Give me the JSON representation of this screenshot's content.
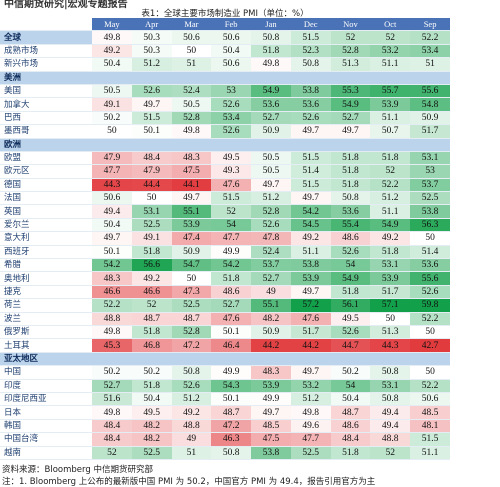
{
  "header": {
    "top": "中信期货研究|宏观专题报告",
    "title": "表1：全球主要市场制造业 PMI（单位：%）"
  },
  "table": {
    "columns": [
      "May",
      "Apr",
      "Mar",
      "Feb",
      "Jan",
      "Dec",
      "Nov",
      "Oct",
      "Sep"
    ],
    "color_scale": {
      "low": "#e23b3e",
      "mid": "#ffffff",
      "high": "#13a04a",
      "min": 44,
      "center": 50,
      "max": 57
    },
    "rows": [
      {
        "label": "全球",
        "group": true,
        "values": [
          49.8,
          50.3,
          50.6,
          50.6,
          50.8,
          51.5,
          52.0,
          52.0,
          52.2
        ]
      },
      {
        "label": "成熟市场",
        "values": [
          49.2,
          50.3,
          50.0,
          50.4,
          51.8,
          52.3,
          52.8,
          53.2,
          53.4
        ]
      },
      {
        "label": "新兴市场",
        "values": [
          50.4,
          51.2,
          51.0,
          50.6,
          49.8,
          50.8,
          51.3,
          51.1,
          51.0
        ]
      },
      {
        "label": "美洲",
        "group": true
      },
      {
        "label": "美国",
        "values": [
          50.5,
          52.6,
          52.4,
          53.0,
          54.9,
          53.8,
          55.3,
          55.7,
          55.6
        ]
      },
      {
        "label": "加拿大",
        "values": [
          49.1,
          49.7,
          50.5,
          52.6,
          53.6,
          53.6,
          54.9,
          53.9,
          54.8
        ]
      },
      {
        "label": "巴西",
        "values": [
          50.2,
          51.5,
          52.8,
          53.4,
          52.7,
          52.6,
          52.7,
          51.1,
          50.9
        ]
      },
      {
        "label": "墨西哥",
        "values": [
          50.0,
          50.1,
          49.8,
          52.6,
          50.9,
          49.7,
          49.7,
          50.7,
          51.7
        ]
      },
      {
        "label": "欧洲",
        "group": true
      },
      {
        "label": "欧盟",
        "values": [
          47.9,
          48.4,
          48.3,
          49.5,
          50.5,
          51.5,
          51.8,
          51.8,
          53.1
        ]
      },
      {
        "label": "欧元区",
        "values": [
          47.7,
          47.9,
          47.5,
          49.3,
          50.5,
          51.4,
          51.8,
          52.0,
          53.0
        ]
      },
      {
        "label": "德国",
        "values": [
          44.3,
          44.4,
          44.1,
          47.6,
          49.7,
          51.5,
          51.8,
          52.2,
          53.7
        ]
      },
      {
        "label": "法国",
        "values": [
          50.6,
          50.0,
          49.7,
          51.5,
          51.2,
          49.7,
          50.8,
          51.2,
          52.5
        ]
      },
      {
        "label": "英国",
        "values": [
          49.4,
          53.1,
          55.1,
          52.0,
          52.8,
          54.2,
          53.6,
          51.1,
          53.8
        ]
      },
      {
        "label": "爱尔兰",
        "values": [
          50.4,
          52.5,
          53.9,
          54.0,
          52.6,
          54.5,
          55.4,
          54.9,
          56.3
        ]
      },
      {
        "label": "意大利",
        "values": [
          49.7,
          49.1,
          47.4,
          47.7,
          47.8,
          49.2,
          48.6,
          49.2,
          50.0
        ]
      },
      {
        "label": "西班牙",
        "values": [
          50.1,
          51.8,
          50.9,
          49.9,
          52.4,
          51.1,
          52.6,
          51.8,
          51.4
        ]
      },
      {
        "label": "希腊",
        "values": [
          54.2,
          56.6,
          54.7,
          54.2,
          53.7,
          53.8,
          54.0,
          53.1,
          53.6
        ]
      },
      {
        "label": "奥地利",
        "values": [
          48.3,
          49.2,
          50.0,
          51.8,
          52.7,
          53.9,
          54.9,
          53.9,
          55.6
        ]
      },
      {
        "label": "捷克",
        "values": [
          46.6,
          46.6,
          47.3,
          48.6,
          49.0,
          49.7,
          51.8,
          51.7,
          52.6
        ]
      },
      {
        "label": "荷兰",
        "values": [
          52.2,
          52.0,
          52.5,
          52.7,
          55.1,
          57.2,
          56.1,
          57.1,
          59.8
        ]
      },
      {
        "label": "波兰",
        "values": [
          48.8,
          48.7,
          48.7,
          47.6,
          48.2,
          47.6,
          49.5,
          50.0,
          52.2
        ]
      },
      {
        "label": "俄罗斯",
        "values": [
          49.8,
          51.8,
          52.8,
          50.1,
          50.9,
          51.7,
          52.6,
          51.3,
          50.0
        ]
      },
      {
        "label": "土耳其",
        "values": [
          45.3,
          46.8,
          47.2,
          46.4,
          44.2,
          44.2,
          44.7,
          44.3,
          42.7
        ]
      },
      {
        "label": "亚太地区",
        "group": true
      },
      {
        "label": "中国",
        "values": [
          50.2,
          50.2,
          50.8,
          49.9,
          48.3,
          49.7,
          50.2,
          50.8,
          50.0
        ]
      },
      {
        "label": "印度",
        "values": [
          52.7,
          51.8,
          52.6,
          54.3,
          53.9,
          53.2,
          54.0,
          53.1,
          52.2
        ]
      },
      {
        "label": "印度尼西亚",
        "values": [
          51.6,
          50.4,
          51.2,
          50.1,
          49.9,
          51.2,
          50.4,
          50.8,
          50.6
        ]
      },
      {
        "label": "日本",
        "values": [
          49.8,
          49.5,
          49.2,
          48.7,
          49.7,
          49.8,
          48.7,
          49.4,
          48.5
        ]
      },
      {
        "label": "韩国",
        "values": [
          48.4,
          48.2,
          48.8,
          47.2,
          48.5,
          49.6,
          48.6,
          49.4,
          48.1
        ]
      },
      {
        "label": "中国台湾",
        "values": [
          48.4,
          48.2,
          49.0,
          46.3,
          47.5,
          47.7,
          48.4,
          48.8,
          51.5
        ]
      },
      {
        "label": "越南",
        "values": [
          52.0,
          52.5,
          51.0,
          50.8,
          53.8,
          52.5,
          51.8,
          52.0,
          51.1
        ]
      }
    ]
  },
  "source": "资料来源：Bloomberg 中信期货研究部",
  "note": "注：1. Bloomberg 上公布的最新版中国 PMI 为 50.2，中国官方 PMI 为 49.4，报告引用官方为主"
}
